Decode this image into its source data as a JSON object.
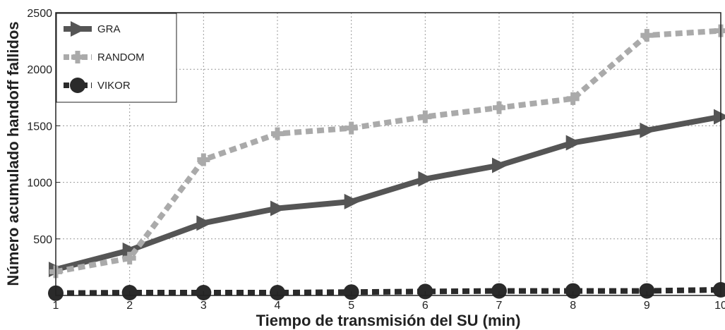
{
  "chart_data": {
    "type": "line",
    "title": "",
    "xlabel": "Tiempo de transmisión del SU (min)",
    "ylabel": "Número acumulado handoff fallidos",
    "x": [
      1,
      2,
      3,
      4,
      5,
      6,
      7,
      8,
      9,
      10
    ],
    "xlim": [
      1,
      10
    ],
    "ylim": [
      0,
      2500
    ],
    "xticks": [
      "1",
      "2",
      "3",
      "4",
      "5",
      "6",
      "7",
      "8",
      "9",
      "10"
    ],
    "yticks": [
      "500",
      "1000",
      "1500",
      "2000",
      "2500"
    ],
    "grid": true,
    "legend_position": "top-left",
    "series": [
      {
        "name": "GRA",
        "values": [
          230,
          400,
          640,
          770,
          830,
          1030,
          1150,
          1350,
          1460,
          1580
        ],
        "color": "#555555",
        "dash": "solid",
        "marker": "triangle-right"
      },
      {
        "name": "RANDOM",
        "values": [
          210,
          330,
          1200,
          1430,
          1480,
          1580,
          1660,
          1740,
          2300,
          2340
        ],
        "color": "#aaaaaa",
        "dash": "dashed",
        "marker": "square"
      },
      {
        "name": "VIKOR",
        "values": [
          20,
          25,
          25,
          25,
          30,
          35,
          40,
          40,
          40,
          50
        ],
        "color": "#2a2a2a",
        "dash": "dashed",
        "marker": "circle"
      }
    ]
  }
}
